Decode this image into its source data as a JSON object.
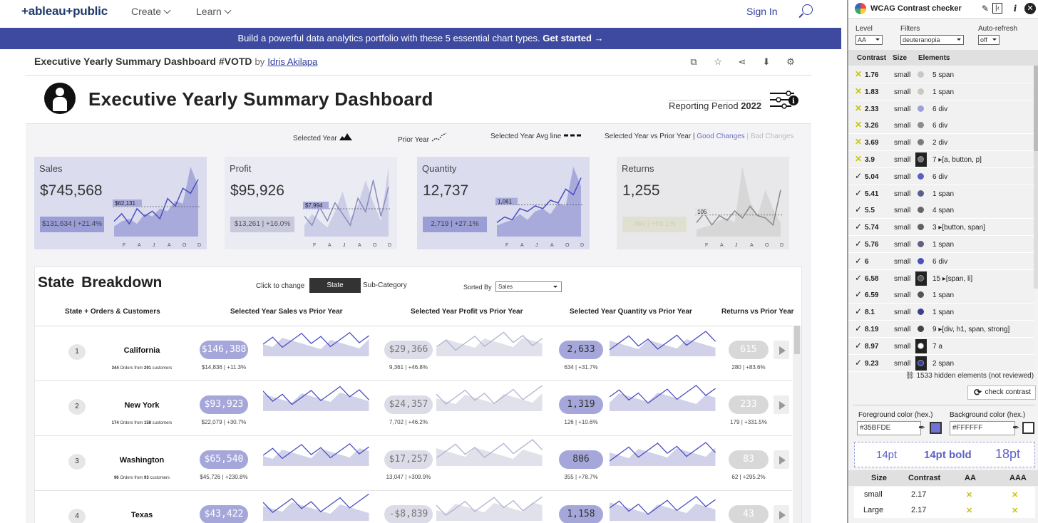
{
  "nav": {
    "logo": "+ableau+public",
    "create": "Create",
    "learn": "Learn",
    "signin": "Sign In"
  },
  "banner": {
    "text": "Build a powerful data analytics portfolio with these 5 essential chart types.",
    "cta": "Get started →"
  },
  "viz": {
    "title": "Executive Yearly Summary Dashboard #VOTD",
    "by": "by",
    "author": "Idris Akilapa"
  },
  "dashboard": {
    "title": "Executive Yearly Summary Dashboard",
    "period_label": "Reporting Period",
    "period_year": "2022",
    "legend": {
      "selected": "Selected Year",
      "prior": "Prior Year",
      "avg": "Selected Year Avg line",
      "vs": "Selected Year vs Prior Year |",
      "good": "Good Changes",
      "sep": "|",
      "bad": "Bad Changes"
    },
    "kpis": [
      {
        "label": "Sales",
        "value": "$745,568",
        "avg": "$62,131",
        "change": "$131,634 | +21.4%",
        "color": "#9b9ed6"
      },
      {
        "label": "Profit",
        "value": "$95,926",
        "avg": "$7,994",
        "change": "$13,261 | +16.0%",
        "color": "#c4c5e2"
      },
      {
        "label": "Quantity",
        "value": "12,737",
        "avg": "1,061",
        "change": "2,719 | +27.1%",
        "color": "#9b9ed6"
      },
      {
        "label": "Returns",
        "value": "1,255",
        "avg": "105",
        "change": "466 | +59.1%",
        "color": "#d2d2d2"
      }
    ],
    "months": [
      "F",
      "A",
      "J",
      "A",
      "O",
      "D"
    ],
    "breakdown": {
      "title": "State  Breakdown",
      "click_to_change": "Click to change",
      "state_btn": "State",
      "subcat": "Sub-Category",
      "sorted_by": "Sorted By",
      "sort_value": "Sales",
      "col_state": "State + Orders & Customers",
      "col_sales": "Selected Year Sales vs  Prior Year",
      "col_profit": "Selected Year Profit vs  Prior Year",
      "col_qty": "Selected Year Quantity vs Prior Year",
      "col_returns": "Returns vs Prior Year",
      "rows": [
        {
          "rank": "1",
          "state": "California",
          "orders": "344",
          "ord_txt": "Orders from",
          "cust": "291",
          "cust_txt": "customers",
          "sales": "$146,388",
          "sales_sub": "$14,836 | +11.3%",
          "profit": "$29,366",
          "profit_sub": "9,361 | +46.8%",
          "qty": "2,633",
          "qty_sub": "634 | +31.7%",
          "ret": "615",
          "ret_sub": "280 | +83.6%"
        },
        {
          "rank": "2",
          "state": "New York",
          "orders": "174",
          "ord_txt": "Orders from",
          "cust": "158",
          "cust_txt": "customers",
          "sales": "$93,923",
          "sales_sub": "$22,079 | +30.7%",
          "profit": "$24,357",
          "profit_sub": "7,702 | +46.2%",
          "qty": "1,319",
          "qty_sub": "126 | +10.6%",
          "ret": "233",
          "ret_sub": "179 | +331.5%"
        },
        {
          "rank": "3",
          "state": "Washington",
          "orders": "96",
          "ord_txt": "Orders from",
          "cust": "93",
          "cust_txt": "customers",
          "sales": "$65,540",
          "sales_sub": "$45,726 | +230.8%",
          "profit": "$17,257",
          "profit_sub": "13,047 | +309.9%",
          "qty": "806",
          "qty_sub": "355 | +78.7%",
          "ret": "83",
          "ret_sub": "62 | +295.2%"
        },
        {
          "rank": "4",
          "state": "Texas",
          "orders": "",
          "ord_txt": "",
          "cust": "",
          "cust_txt": "",
          "sales": "$43,422",
          "sales_sub": "",
          "profit": "-$8,839",
          "profit_sub": "",
          "qty": "1,158",
          "qty_sub": "",
          "ret": "43",
          "ret_sub": ""
        }
      ]
    }
  },
  "wcag": {
    "title": "WCAG Contrast checker",
    "level_label": "Level",
    "level_value": "AA",
    "filters_label": "Filters",
    "filters_value": "deuteranopia",
    "auto_label": "Auto-refresh",
    "auto_value": "off",
    "col_contrast": "Contrast",
    "col_size": "Size",
    "col_elements": "Elements",
    "rows": [
      {
        "mark": "x",
        "contrast": "1.76",
        "size": "small",
        "color": "#c8c8c8",
        "boxed": false,
        "elements": "5 span"
      },
      {
        "mark": "x",
        "contrast": "1.83",
        "size": "small",
        "color": "#c9c9c0",
        "boxed": false,
        "elements": "1 span"
      },
      {
        "mark": "x",
        "contrast": "2.33",
        "size": "small",
        "color": "#9fa0d8",
        "boxed": false,
        "elements": "6 div"
      },
      {
        "mark": "x",
        "contrast": "3.26",
        "size": "small",
        "color": "#8c8c8c",
        "boxed": false,
        "elements": "6 div"
      },
      {
        "mark": "x",
        "contrast": "3.69",
        "size": "small",
        "color": "#7b7b7b",
        "boxed": false,
        "elements": "2 div"
      },
      {
        "mark": "x",
        "contrast": "3.9",
        "size": "small",
        "color": "#777777",
        "boxed": true,
        "elements": "7 ▸[a, button, p]"
      },
      {
        "mark": "ok",
        "contrast": "5.04",
        "size": "small",
        "color": "#5a5fc4",
        "boxed": false,
        "elements": "6 div"
      },
      {
        "mark": "ok",
        "contrast": "5.41",
        "size": "small",
        "color": "#5c5f8c",
        "boxed": false,
        "elements": "1 span"
      },
      {
        "mark": "ok",
        "contrast": "5.5",
        "size": "small",
        "color": "#666666",
        "boxed": false,
        "elements": "4 span"
      },
      {
        "mark": "ok",
        "contrast": "5.74",
        "size": "small",
        "color": "#616161",
        "boxed": false,
        "elements": "3 ▸[button, span]"
      },
      {
        "mark": "ok",
        "contrast": "5.76",
        "size": "small",
        "color": "#5f5f80",
        "boxed": false,
        "elements": "1 span"
      },
      {
        "mark": "ok",
        "contrast": "6",
        "size": "small",
        "color": "#4a4ec0",
        "boxed": false,
        "elements": "6 div"
      },
      {
        "mark": "ok",
        "contrast": "6.58",
        "size": "small",
        "color": "#555555",
        "boxed": true,
        "elements": "15 ▸[span, li]"
      },
      {
        "mark": "ok",
        "contrast": "6.59",
        "size": "small",
        "color": "#545454",
        "boxed": false,
        "elements": "1 span"
      },
      {
        "mark": "ok",
        "contrast": "8.1",
        "size": "small",
        "color": "#3b3f8c",
        "boxed": false,
        "elements": "1 span"
      },
      {
        "mark": "ok",
        "contrast": "8.19",
        "size": "small",
        "color": "#444444",
        "boxed": false,
        "elements": "9 ▸[div, h1, span, strong]"
      },
      {
        "mark": "ok",
        "contrast": "8.97",
        "size": "small",
        "color": "#ffffff",
        "boxed": true,
        "elements": "7 a"
      },
      {
        "mark": "ok",
        "contrast": "9.23",
        "size": "small",
        "color": "#2f3e9e",
        "boxed": true,
        "elements": "2 span"
      }
    ],
    "hidden_text": "1533 hidden elements (not reviewed)",
    "check_btn": "check contrast",
    "fg_label": "Foreground color (hex.)",
    "fg_value": "#35BFDE",
    "fg_color": "#6f73d2",
    "bg_label": "Background color (hex.)",
    "bg_value": "#FFFFFF",
    "bg_color": "#ffffff",
    "preview": [
      "14pt",
      "14pt bold",
      "18pt"
    ],
    "res_size": "Size",
    "res_contrast": "Contrast",
    "res_aa": "AA",
    "res_aaa": "AAA",
    "results": [
      {
        "size": "small",
        "contrast": "2.17",
        "aa": "✕",
        "aaa": "✕"
      },
      {
        "size": "Large",
        "contrast": "2.17",
        "aa": "✕",
        "aaa": "✕"
      }
    ]
  }
}
